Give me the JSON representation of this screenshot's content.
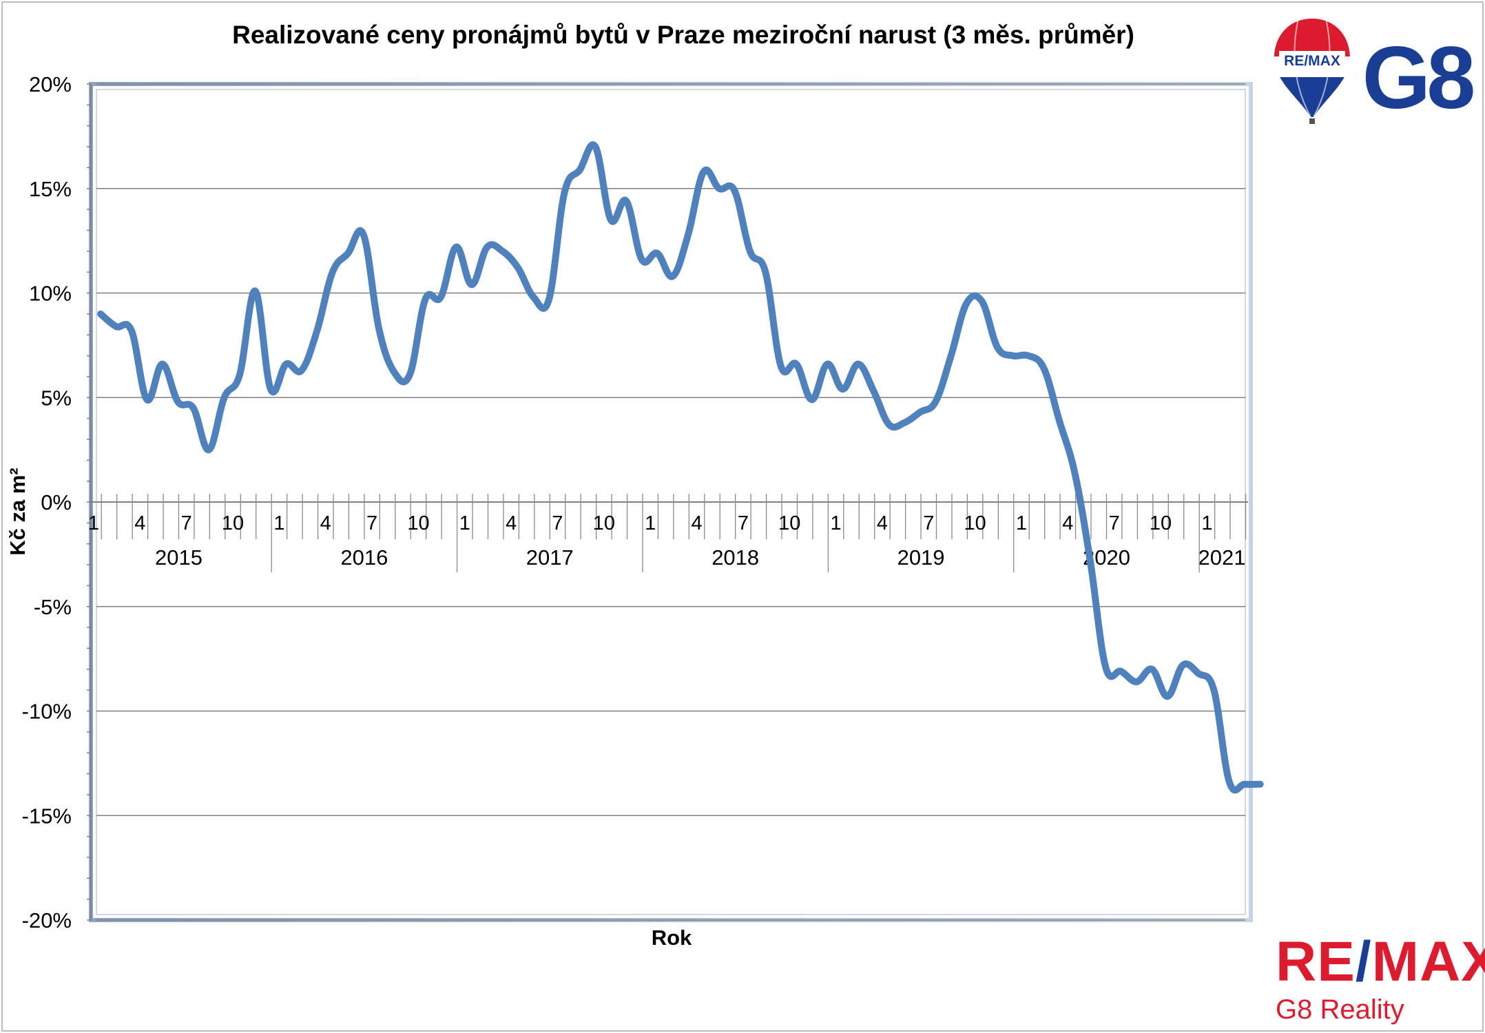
{
  "chart_data": {
    "type": "line",
    "title": "Realizované ceny pronájmů bytů v Praze meziroční narust (3 měs. průměr)",
    "xlabel": "Rok",
    "ylabel": "Kč za m²",
    "y_unit": "%",
    "ylim": [
      -20,
      20
    ],
    "y_ticks": [
      "20%",
      "15%",
      "10%",
      "5%",
      "0%",
      "-5%",
      "-10%",
      "-15%",
      "-20%"
    ],
    "y_tick_values": [
      20,
      15,
      10,
      5,
      0,
      -5,
      -10,
      -15,
      -20
    ],
    "month_tick_labels": [
      "1",
      "4",
      "7",
      "10"
    ],
    "years": [
      "2015",
      "2016",
      "2017",
      "2018",
      "2019",
      "2020",
      "2021"
    ],
    "grid": true,
    "legend": "none",
    "line_color": "#4f81bd",
    "series": [
      {
        "x": [
          "2015-01",
          "2015-02",
          "2015-03",
          "2015-04",
          "2015-05",
          "2015-06",
          "2015-07",
          "2015-08",
          "2015-09",
          "2015-10",
          "2015-11",
          "2015-12",
          "2016-01",
          "2016-02",
          "2016-03",
          "2016-04",
          "2016-05",
          "2016-06",
          "2016-07",
          "2016-08",
          "2016-09",
          "2016-10",
          "2016-11",
          "2016-12",
          "2017-01",
          "2017-02",
          "2017-03",
          "2017-04",
          "2017-05",
          "2017-06",
          "2017-07",
          "2017-08",
          "2017-09",
          "2017-10",
          "2017-11",
          "2017-12",
          "2018-01",
          "2018-02",
          "2018-03",
          "2018-04",
          "2018-05",
          "2018-06",
          "2018-07",
          "2018-08",
          "2018-09",
          "2018-10",
          "2018-11",
          "2018-12",
          "2019-01",
          "2019-02",
          "2019-03",
          "2019-04",
          "2019-05",
          "2019-06",
          "2019-07",
          "2019-08",
          "2019-09",
          "2019-10",
          "2019-11",
          "2019-12",
          "2020-01",
          "2020-02",
          "2020-03",
          "2020-04",
          "2020-05",
          "2020-06",
          "2020-07",
          "2020-08",
          "2020-09",
          "2020-10",
          "2020-11",
          "2020-12",
          "2021-01",
          "2021-02",
          "2021-03",
          "2021-04"
        ],
        "values": [
          9.0,
          8.4,
          8.2,
          4.9,
          6.6,
          4.8,
          4.5,
          2.5,
          5.0,
          6.1,
          10.1,
          5.4,
          6.6,
          6.3,
          8.2,
          11.0,
          11.9,
          12.8,
          8.3,
          6.2,
          6.1,
          9.7,
          9.8,
          12.2,
          10.4,
          12.2,
          12.0,
          11.2,
          9.8,
          9.7,
          14.8,
          15.9,
          17.0,
          13.5,
          14.4,
          11.6,
          11.9,
          10.8,
          12.8,
          15.8,
          15.0,
          14.9,
          12.0,
          11.0,
          6.5,
          6.6,
          4.9,
          6.6,
          5.4,
          6.6,
          5.3,
          3.7,
          3.8,
          4.3,
          4.8,
          7.0,
          9.5,
          9.6,
          7.4,
          7.0,
          7.0,
          6.4,
          3.9,
          1.4,
          -2.8,
          -7.9,
          -8.1,
          -8.6,
          -8.0,
          -9.3,
          -7.8,
          -8.2,
          -9.0,
          -13.4,
          -13.5,
          -13.5
        ]
      }
    ]
  },
  "logo_top": {
    "badge_text": "RE/MAX",
    "mark": "G8"
  },
  "brand_bottom": {
    "line1_left": "RE",
    "line1_slash": "/",
    "line1_right": "MAX",
    "line2": "G8 Reality"
  }
}
